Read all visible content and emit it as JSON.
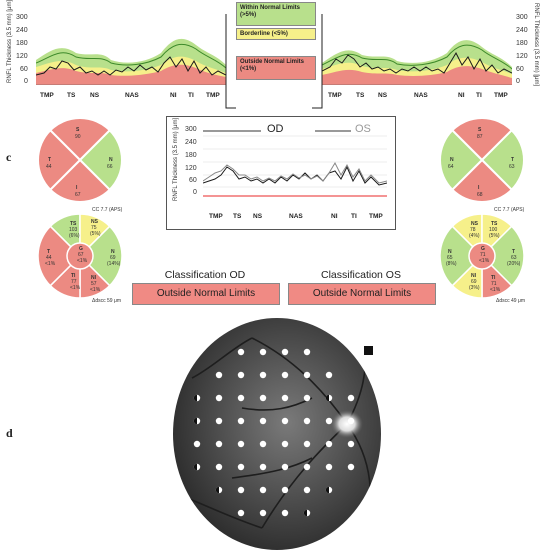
{
  "panel_labels": {
    "c": "c",
    "d": "d"
  },
  "legend": {
    "within": "Within Normal Limits (>5%)",
    "borderline": "Borderline (<5%)",
    "outside": "Outside Normal Limits (<1%)"
  },
  "rnfl_axis_label": "RNFL Thickness (3.5 mm) [μm]",
  "y_ticks": [
    "300",
    "240",
    "180",
    "120",
    "60",
    "0"
  ],
  "x_ticks": [
    "TMP",
    "TS",
    "NS",
    "NAS",
    "NI",
    "TI",
    "TMP"
  ],
  "overlay": {
    "od_label": "OD",
    "os_label": "OS"
  },
  "od": {
    "quadrants": [
      {
        "name": "S",
        "value": "90"
      },
      {
        "name": "N",
        "value": "66"
      },
      {
        "name": "I",
        "value": "67"
      },
      {
        "name": "T",
        "value": "44"
      }
    ],
    "sectors": [
      {
        "name": "TS",
        "value": "103",
        "pct": "(6%)"
      },
      {
        "name": "NS",
        "value": "75",
        "pct": "(5%)"
      },
      {
        "name": "N",
        "value": "69",
        "pct": "(14%)"
      },
      {
        "name": "NI",
        "value": "57",
        "pct": "<1%"
      },
      {
        "name": "TI",
        "value": "77",
        "pct": "<1%"
      },
      {
        "name": "T",
        "value": "44",
        "pct": "<1%"
      },
      {
        "name": "G",
        "value": "67",
        "pct": "<1%"
      }
    ],
    "cc": "CC 7.7 (APS)",
    "dscc": "Δdscc 59 μm",
    "class_title": "Classification OD",
    "class_value": "Outside Normal Limits"
  },
  "os": {
    "quadrants": [
      {
        "name": "S",
        "value": "87"
      },
      {
        "name": "T",
        "value": "63"
      },
      {
        "name": "I",
        "value": "68"
      },
      {
        "name": "N",
        "value": "64"
      }
    ],
    "sectors": [
      {
        "name": "NS",
        "value": "78",
        "pct": "(4%)"
      },
      {
        "name": "TS",
        "value": "100",
        "pct": "(5%)"
      },
      {
        "name": "T",
        "value": "63",
        "pct": "(20%)"
      },
      {
        "name": "TI",
        "value": "71",
        "pct": "<1%"
      },
      {
        "name": "NI",
        "value": "69",
        "pct": "(3%)"
      },
      {
        "name": "N",
        "value": "65",
        "pct": "(8%)"
      },
      {
        "name": "G",
        "value": "71",
        "pct": "<1%"
      }
    ],
    "cc": "CC 7.7 (APS)",
    "dscc": "Δdscc 49 μm",
    "class_title": "Classification OS",
    "class_value": "Outside Normal Limits"
  },
  "colors": {
    "green": "#b8e08c",
    "green_band": "#9ad66a",
    "yellow": "#f6f08a",
    "red": "#ec8a82",
    "od_line": "#1a1a1a",
    "os_line": "#888888"
  }
}
